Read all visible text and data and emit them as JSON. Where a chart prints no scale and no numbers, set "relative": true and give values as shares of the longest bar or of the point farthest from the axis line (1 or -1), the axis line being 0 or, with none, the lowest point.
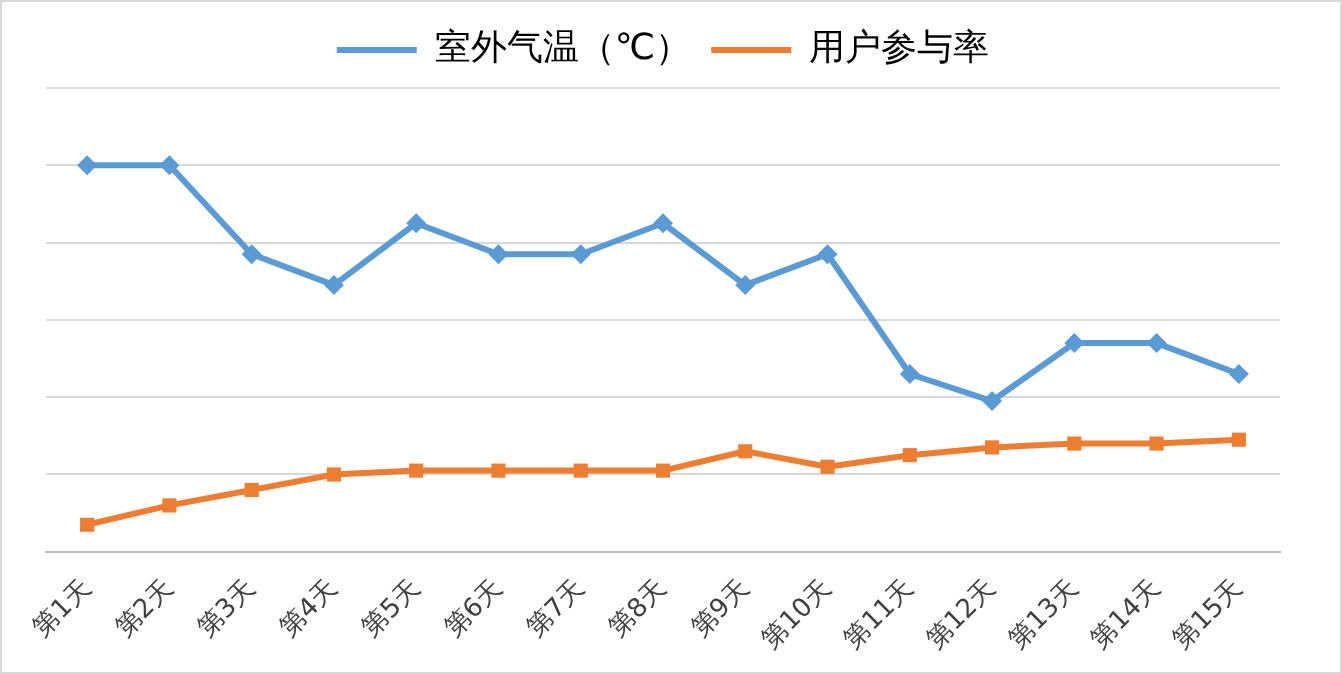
{
  "chart_data": {
    "type": "line",
    "relative": true,
    "grid": "y",
    "legend": "top",
    "categories": [
      "第1天",
      "第2天",
      "第3天",
      "第4天",
      "第5天",
      "第6天",
      "第7天",
      "第8天",
      "第9天",
      "第10天",
      "第11天",
      "第12天",
      "第13天",
      "第14天",
      "第15天"
    ],
    "series": [
      {
        "name": "室外气温（℃）",
        "color": "#5b9bd5",
        "marker": "diamond",
        "values": [
          1,
          1,
          0.77,
          0.69,
          0.85,
          0.77,
          0.77,
          0.85,
          0.69,
          0.77,
          0.46,
          0.39,
          0.54,
          0.54,
          0.46
        ]
      },
      {
        "name": "用户参与率",
        "color": "#ed7d31",
        "marker": "square",
        "values": [
          0.07,
          0.12,
          0.16,
          0.2,
          0.21,
          0.21,
          0.21,
          0.21,
          0.26,
          0.22,
          0.25,
          0.27,
          0.28,
          0.28,
          0.29
        ]
      }
    ]
  }
}
